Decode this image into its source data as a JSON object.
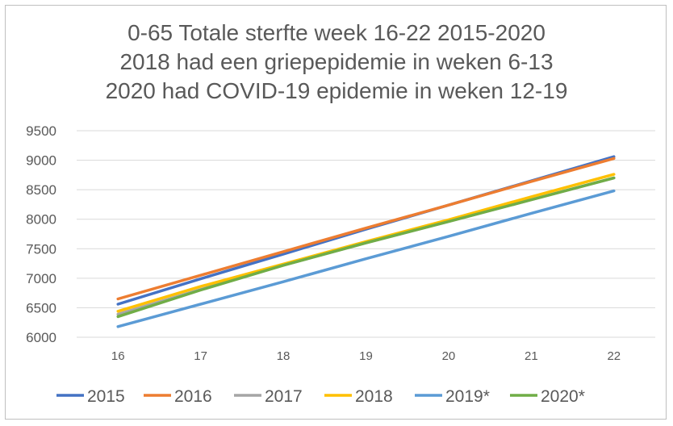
{
  "chart_data": {
    "type": "line",
    "title": [
      "0-65 Totale sterfte week 16-22 2015-2020",
      "2018 had een griepepidemie in weken 6-13",
      "2020 had COVID-19 epidemie in weken 12-19"
    ],
    "xlabel": "",
    "ylabel": "",
    "categories": [
      "16",
      "17",
      "18",
      "19",
      "20",
      "21",
      "22"
    ],
    "yticks": [
      "9500",
      "9000",
      "8500",
      "8000",
      "7500",
      "7000",
      "6500",
      "6000"
    ],
    "ylim": [
      6000,
      9500
    ],
    "grid": true,
    "legend_position": "bottom",
    "series": [
      {
        "name": "2015",
        "color": "#4472C4",
        "values": [
          6560,
          6990,
          7410,
          7830,
          8240,
          8650,
          9060
        ]
      },
      {
        "name": "2016",
        "color": "#ED7D31",
        "values": [
          6650,
          7050,
          7450,
          7850,
          8240,
          8640,
          9030
        ]
      },
      {
        "name": "2017",
        "color": "#A5A5A5",
        "values": [
          6390,
          6810,
          7220,
          7600,
          7960,
          8330,
          8700
        ]
      },
      {
        "name": "2018",
        "color": "#FFC000",
        "values": [
          6440,
          6860,
          7240,
          7620,
          7990,
          8380,
          8760
        ]
      },
      {
        "name": "2019*",
        "color": "#5B9BD5",
        "values": [
          6180,
          6560,
          6940,
          7330,
          7710,
          8100,
          8480
        ]
      },
      {
        "name": "2020*",
        "color": "#70AD47",
        "values": [
          6350,
          6800,
          7220,
          7600,
          7960,
          8330,
          8700
        ]
      }
    ]
  }
}
